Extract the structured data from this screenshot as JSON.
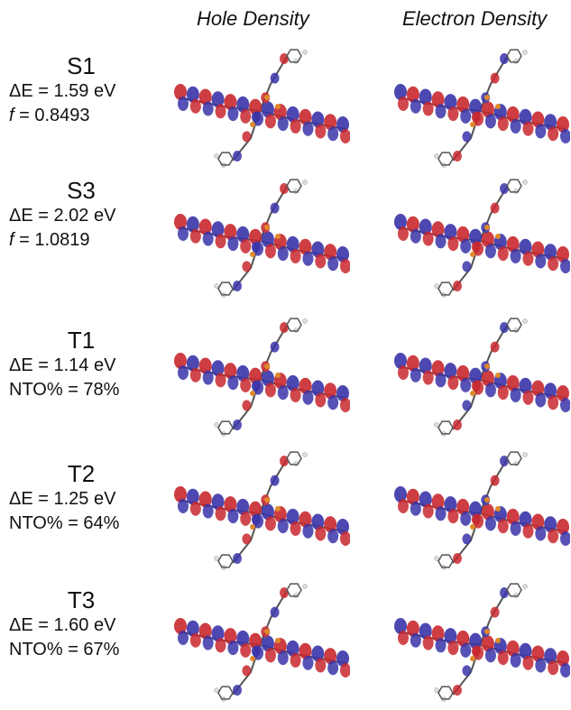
{
  "headers": {
    "hole": "Hole Density",
    "electron": "Electron Density"
  },
  "rows": [
    {
      "state": "S1",
      "line2": "ΔE = 1.59 eV",
      "line3_prefix": "f",
      "line3_value": "= 0.8493"
    },
    {
      "state": "S3",
      "line2": "ΔE = 2.02 eV",
      "line3_prefix": "f",
      "line3_value": "= 1.0819"
    },
    {
      "state": "T1",
      "line2": "ΔE = 1.14 eV",
      "line3_prefix": "",
      "line3_value": "NTO% = 78%"
    },
    {
      "state": "T2",
      "line2": "ΔE = 1.25 eV",
      "line3_prefix": "",
      "line3_value": "NTO% = 64%"
    },
    {
      "state": "T3",
      "line2": "ΔE = 1.60 eV",
      "line3_prefix": "",
      "line3_value": "NTO% = 67%"
    }
  ],
  "colors": {
    "positive_lobe": "#c8282e",
    "negative_lobe": "#3a34a8",
    "carbon": "#555555",
    "hydrogen": "#dddddd",
    "phosphorus": "#e08a2a"
  }
}
